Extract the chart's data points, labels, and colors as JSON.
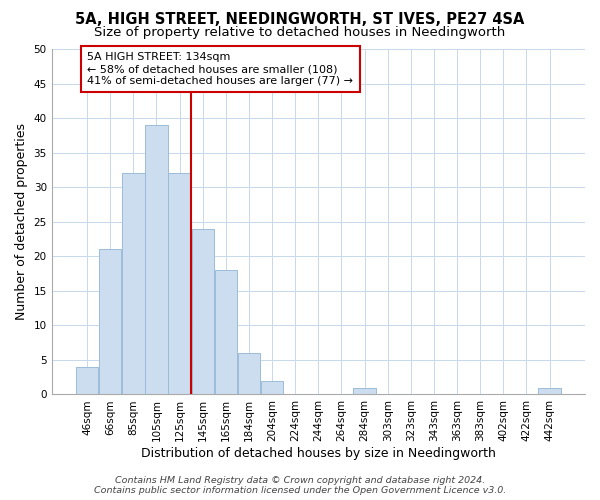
{
  "title": "5A, HIGH STREET, NEEDINGWORTH, ST IVES, PE27 4SA",
  "subtitle": "Size of property relative to detached houses in Needingworth",
  "xlabel": "Distribution of detached houses by size in Needingworth",
  "ylabel": "Number of detached properties",
  "bar_labels": [
    "46sqm",
    "66sqm",
    "85sqm",
    "105sqm",
    "125sqm",
    "145sqm",
    "165sqm",
    "184sqm",
    "204sqm",
    "224sqm",
    "244sqm",
    "264sqm",
    "284sqm",
    "303sqm",
    "323sqm",
    "343sqm",
    "363sqm",
    "383sqm",
    "402sqm",
    "422sqm",
    "442sqm"
  ],
  "bar_values": [
    4,
    21,
    32,
    39,
    32,
    24,
    18,
    6,
    2,
    0,
    0,
    0,
    1,
    0,
    0,
    0,
    0,
    0,
    0,
    0,
    1
  ],
  "bar_color": "#cdddf0",
  "bar_edge_color": "#9bbcd8",
  "vline_x_index": 4.5,
  "vline_color": "#cc0000",
  "ylim": [
    0,
    50
  ],
  "annotation_text": "5A HIGH STREET: 134sqm\n← 58% of detached houses are smaller (108)\n41% of semi-detached houses are larger (77) →",
  "annotation_box_color": "#ffffff",
  "annotation_box_edge": "#cc0000",
  "footer1": "Contains HM Land Registry data © Crown copyright and database right 2024.",
  "footer2": "Contains public sector information licensed under the Open Government Licence v3.0.",
  "title_fontsize": 10.5,
  "subtitle_fontsize": 9.5,
  "axis_label_fontsize": 9,
  "tick_fontsize": 7.5,
  "annotation_fontsize": 8,
  "footer_fontsize": 6.8
}
